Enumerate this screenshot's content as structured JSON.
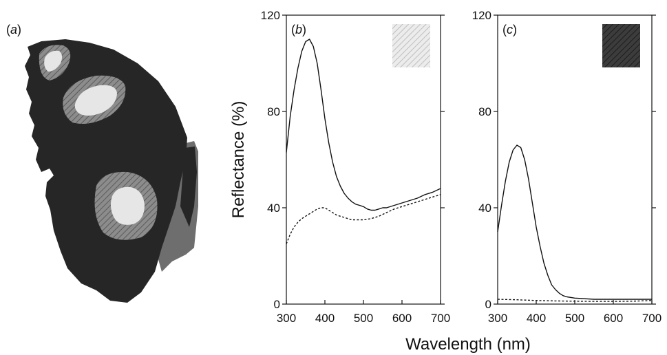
{
  "panel_a": {
    "label_prefix": "(",
    "label_letter": "a",
    "label_suffix": ")",
    "colors": {
      "wing": "#262626",
      "wing_edge_gray": "#6e6e6e",
      "eye_ring": "#8a8a8a",
      "eye_center": "#e6e6e6"
    }
  },
  "chart_data": [
    {
      "type": "line",
      "panel": "b",
      "label_prefix": "(",
      "label_letter": "b",
      "label_suffix": ")",
      "xlabel": "Wavelength (nm)",
      "ylabel": "Reflectance (%)",
      "xlim": [
        300,
        700
      ],
      "ylim": [
        0,
        120
      ],
      "xticks": [
        300,
        400,
        500,
        600,
        700
      ],
      "yticks": [
        0,
        40,
        80,
        120
      ],
      "swatch": {
        "fill": "#e9e9e9",
        "stripe": "#b8b8b8"
      },
      "series": [
        {
          "style": "solid",
          "x": [
            300,
            310,
            320,
            330,
            340,
            350,
            360,
            370,
            380,
            390,
            400,
            410,
            420,
            430,
            440,
            450,
            460,
            470,
            480,
            490,
            500,
            510,
            520,
            530,
            540,
            550,
            560,
            580,
            600,
            620,
            640,
            660,
            680,
            700
          ],
          "y": [
            63,
            78,
            89,
            98,
            105,
            109,
            110,
            107,
            100,
            89,
            77,
            67,
            59,
            53,
            49,
            46,
            44,
            42.5,
            41.5,
            41,
            40.5,
            39.5,
            39,
            39,
            39.5,
            40,
            40,
            41,
            42,
            43,
            44,
            45.5,
            46.5,
            48
          ]
        },
        {
          "style": "dashed",
          "x": [
            300,
            310,
            320,
            330,
            340,
            350,
            360,
            370,
            380,
            390,
            400,
            410,
            420,
            430,
            440,
            450,
            460,
            470,
            480,
            490,
            500,
            520,
            540,
            560,
            580,
            600,
            620,
            640,
            660,
            680,
            700
          ],
          "y": [
            25,
            29,
            32,
            34,
            35.5,
            36.5,
            37.5,
            38.5,
            39.5,
            40,
            40,
            39,
            38,
            37,
            36.5,
            36,
            35.5,
            35,
            35,
            35,
            35,
            35.5,
            36.5,
            38,
            39.5,
            40.5,
            41.5,
            42.5,
            43.5,
            44.5,
            45.5
          ]
        }
      ]
    },
    {
      "type": "line",
      "panel": "c",
      "label_prefix": "(",
      "label_letter": "c",
      "label_suffix": ")",
      "xlabel": "Wavelength (nm)",
      "ylabel": "Reflectance (%)",
      "xlim": [
        300,
        700
      ],
      "ylim": [
        0,
        120
      ],
      "xticks": [
        300,
        400,
        500,
        600,
        700
      ],
      "yticks": [
        0,
        40,
        80,
        120
      ],
      "swatch": {
        "fill": "#3a3a3a",
        "stripe": "#1a1a1a"
      },
      "series": [
        {
          "style": "solid",
          "x": [
            300,
            310,
            320,
            330,
            340,
            350,
            360,
            370,
            380,
            390,
            400,
            410,
            420,
            430,
            440,
            450,
            460,
            470,
            480,
            500,
            550,
            600,
            650,
            700
          ],
          "y": [
            30,
            41,
            51,
            59,
            64,
            66,
            65,
            60,
            52,
            42,
            32,
            24,
            17,
            12,
            8,
            6,
            4.5,
            3.5,
            3,
            2.5,
            2,
            2,
            2,
            2
          ]
        },
        {
          "style": "dashed",
          "x": [
            300,
            350,
            400,
            450,
            500,
            550,
            600,
            650,
            700
          ],
          "y": [
            2,
            1.8,
            1.5,
            1.3,
            1.2,
            1.1,
            1.1,
            1.2,
            1.5
          ]
        }
      ]
    }
  ],
  "shared": {
    "xlabel": "Wavelength (nm)",
    "ylabel": "Reflectance (%)"
  }
}
